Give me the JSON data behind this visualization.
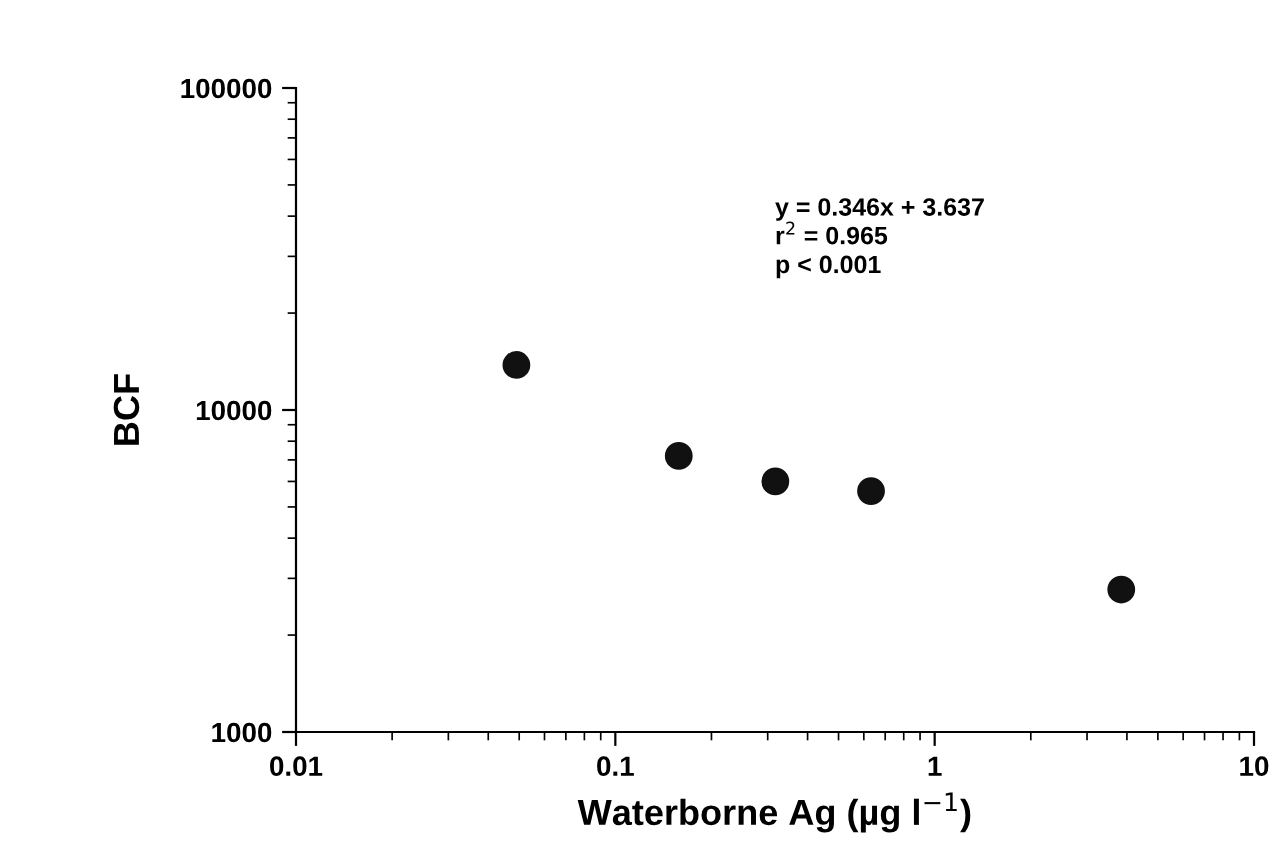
{
  "chart_data": {
    "type": "scatter",
    "xlabel": "Waterborne Ag (µg l$^{−1}$)",
    "ylabel": "BCF",
    "x": [
      0.049,
      0.158,
      0.317,
      0.632,
      3.84
    ],
    "values": [
      13800,
      7200,
      6000,
      5600,
      2770
    ],
    "color": "#111111",
    "marker": "circle",
    "log": "xy",
    "grid": false,
    "legend": false,
    "xlim": [
      0.01,
      10
    ],
    "xticks": [
      0.01,
      0.1,
      1,
      10
    ],
    "ylim": [
      1000,
      100000
    ],
    "yticks": [
      1000,
      10000,
      100000
    ],
    "annotations": [
      "y = 0.346x + 3.637\nr$^{2}$ = 0.965\np < 0.001"
    ]
  }
}
